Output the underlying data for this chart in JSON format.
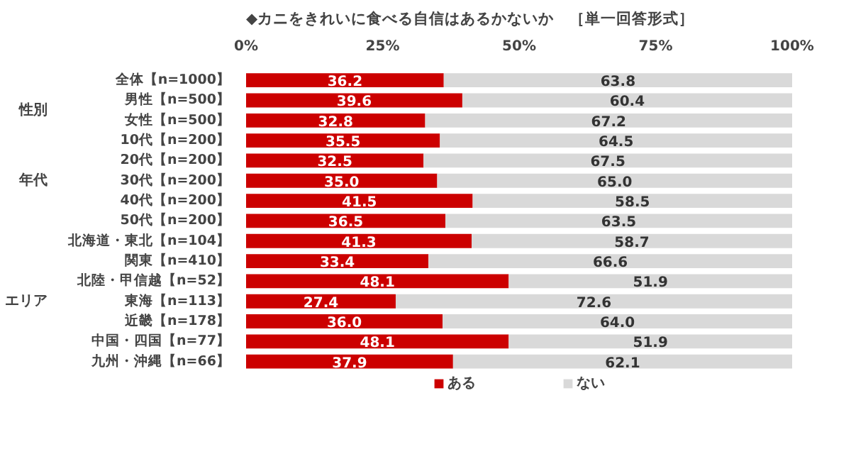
{
  "chart_data": {
    "type": "bar",
    "orientation": "horizontal",
    "stacked": true,
    "title": "◆カニをきれいに食べる自信はあるかないか　［単一回答形式］",
    "categories": [
      "全体【n=1000】",
      "男性【n=500】",
      "女性【n=500】",
      "10代【n=200】",
      "20代【n=200】",
      "30代【n=200】",
      "40代【n=200】",
      "50代【n=200】",
      "北海道・東北【n=104】",
      "関東【n=410】",
      "北陸・甲信越【n=52】",
      "東海【n=113】",
      "近畿【n=178】",
      "中国・四国【n=77】",
      "九州・沖縄【n=66】"
    ],
    "series": [
      {
        "name": "ある",
        "color": "#cc0000",
        "values": [
          36.2,
          39.6,
          32.8,
          35.5,
          32.5,
          35.0,
          41.5,
          36.5,
          41.3,
          33.4,
          48.1,
          27.4,
          36.0,
          48.1,
          37.9
        ],
        "value_labels": [
          "36.2",
          "39.6",
          "32.8",
          "35.5",
          "32.5",
          "35.0",
          "41.5",
          "36.5",
          "41.3",
          "33.4",
          "48.1",
          "27.4",
          "36.0",
          "48.1",
          "37.9"
        ]
      },
      {
        "name": "ない",
        "color": "#d9d9d9",
        "values": [
          63.8,
          60.4,
          67.2,
          64.5,
          67.5,
          65.0,
          58.5,
          63.5,
          58.7,
          66.6,
          51.9,
          72.6,
          64.0,
          51.9,
          62.1
        ],
        "value_labels": [
          "63.8",
          "60.4",
          "67.2",
          "64.5",
          "67.5",
          "65.0",
          "58.5",
          "63.5",
          "58.7",
          "66.6",
          "51.9",
          "72.6",
          "64.0",
          "51.9",
          "62.1"
        ]
      }
    ],
    "xlim": [
      0,
      100
    ],
    "xticks": [
      {
        "value": 0,
        "label": "0%"
      },
      {
        "value": 25,
        "label": "25%"
      },
      {
        "value": 50,
        "label": "50%"
      },
      {
        "value": 75,
        "label": "75%"
      },
      {
        "value": 100,
        "label": "100%"
      }
    ],
    "annotations": [
      "性別",
      "年代",
      "エリア"
    ],
    "legend": "bottom",
    "grid": false
  }
}
